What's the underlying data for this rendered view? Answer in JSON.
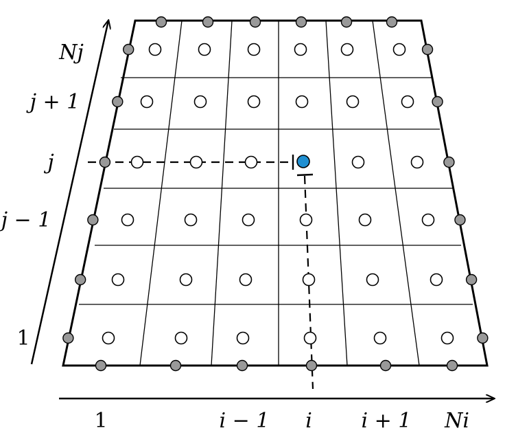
{
  "diagram": {
    "axes": {
      "i_labels": [
        {
          "id": "one",
          "text": "1"
        },
        {
          "id": "i-minus-1",
          "text": "i − 1"
        },
        {
          "id": "i",
          "text": "i"
        },
        {
          "id": "i-plus-1",
          "text": "i + 1"
        },
        {
          "id": "ni",
          "text": "Ni"
        }
      ],
      "j_labels": [
        {
          "id": "nj",
          "text": "Nj"
        },
        {
          "id": "j-plus-1",
          "text": "j + 1"
        },
        {
          "id": "j",
          "text": "j"
        },
        {
          "id": "j-minus-1",
          "text": "j − 1"
        },
        {
          "id": "one",
          "text": "1"
        }
      ]
    },
    "grid": {
      "columns": 6,
      "rows": 6
    },
    "colors": {
      "line": "#000000",
      "boundary_node": "#999999",
      "cell_center": "#ffffff",
      "highlight_node": "#1f8fd1"
    },
    "highlight": {
      "column": 4,
      "row": 3
    }
  }
}
